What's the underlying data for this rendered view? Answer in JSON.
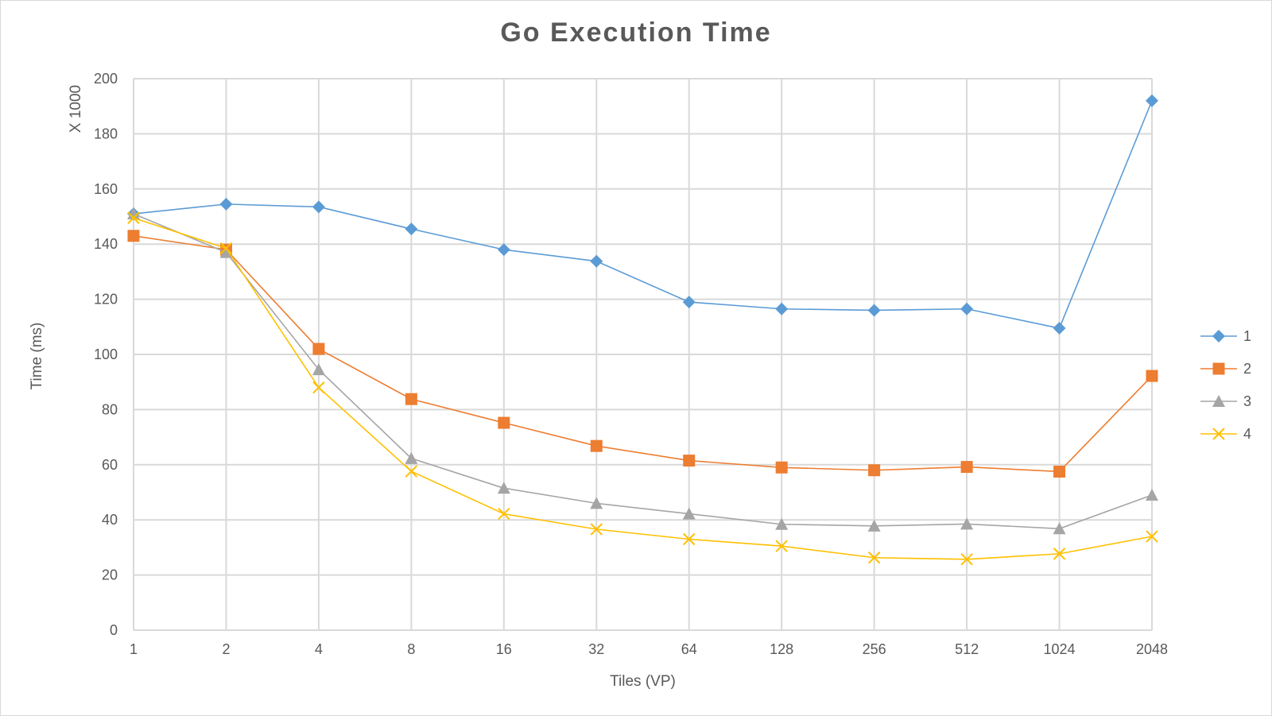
{
  "chart_data": {
    "type": "line",
    "title": "Go Execution Time",
    "xlabel": "Tiles (VP)",
    "ylabel": "Time (ms)",
    "y_multiplier_label": "X 1000",
    "categories": [
      "1",
      "2",
      "4",
      "8",
      "16",
      "32",
      "64",
      "128",
      "256",
      "512",
      "1024",
      "2048"
    ],
    "ylim": [
      0,
      200
    ],
    "yticks": [
      0,
      20,
      40,
      60,
      80,
      100,
      120,
      140,
      160,
      180,
      200
    ],
    "grid": true,
    "legend_position": "right",
    "series": [
      {
        "name": "1",
        "color": "#5B9BD5",
        "marker": "diamond",
        "values": [
          151,
          154.5,
          153.5,
          145.5,
          138,
          133.8,
          119,
          116.5,
          116,
          116.5,
          109.5,
          192
        ]
      },
      {
        "name": "2",
        "color": "#ED7D31",
        "marker": "square",
        "values": [
          143,
          138,
          102,
          83.8,
          75.2,
          66.8,
          61.5,
          59,
          58,
          59.2,
          57.5,
          92.2
        ]
      },
      {
        "name": "3",
        "color": "#A5A5A5",
        "marker": "triangle",
        "values": [
          151,
          137,
          94.5,
          62.3,
          51.5,
          46,
          42.2,
          38.4,
          37.8,
          38.5,
          36.8,
          49
        ]
      },
      {
        "name": "4",
        "color": "#FFC000",
        "marker": "x",
        "values": [
          149.5,
          138.5,
          88,
          57.6,
          42.2,
          36.6,
          33,
          30.5,
          26.3,
          25.7,
          27.7,
          34
        ]
      }
    ]
  }
}
